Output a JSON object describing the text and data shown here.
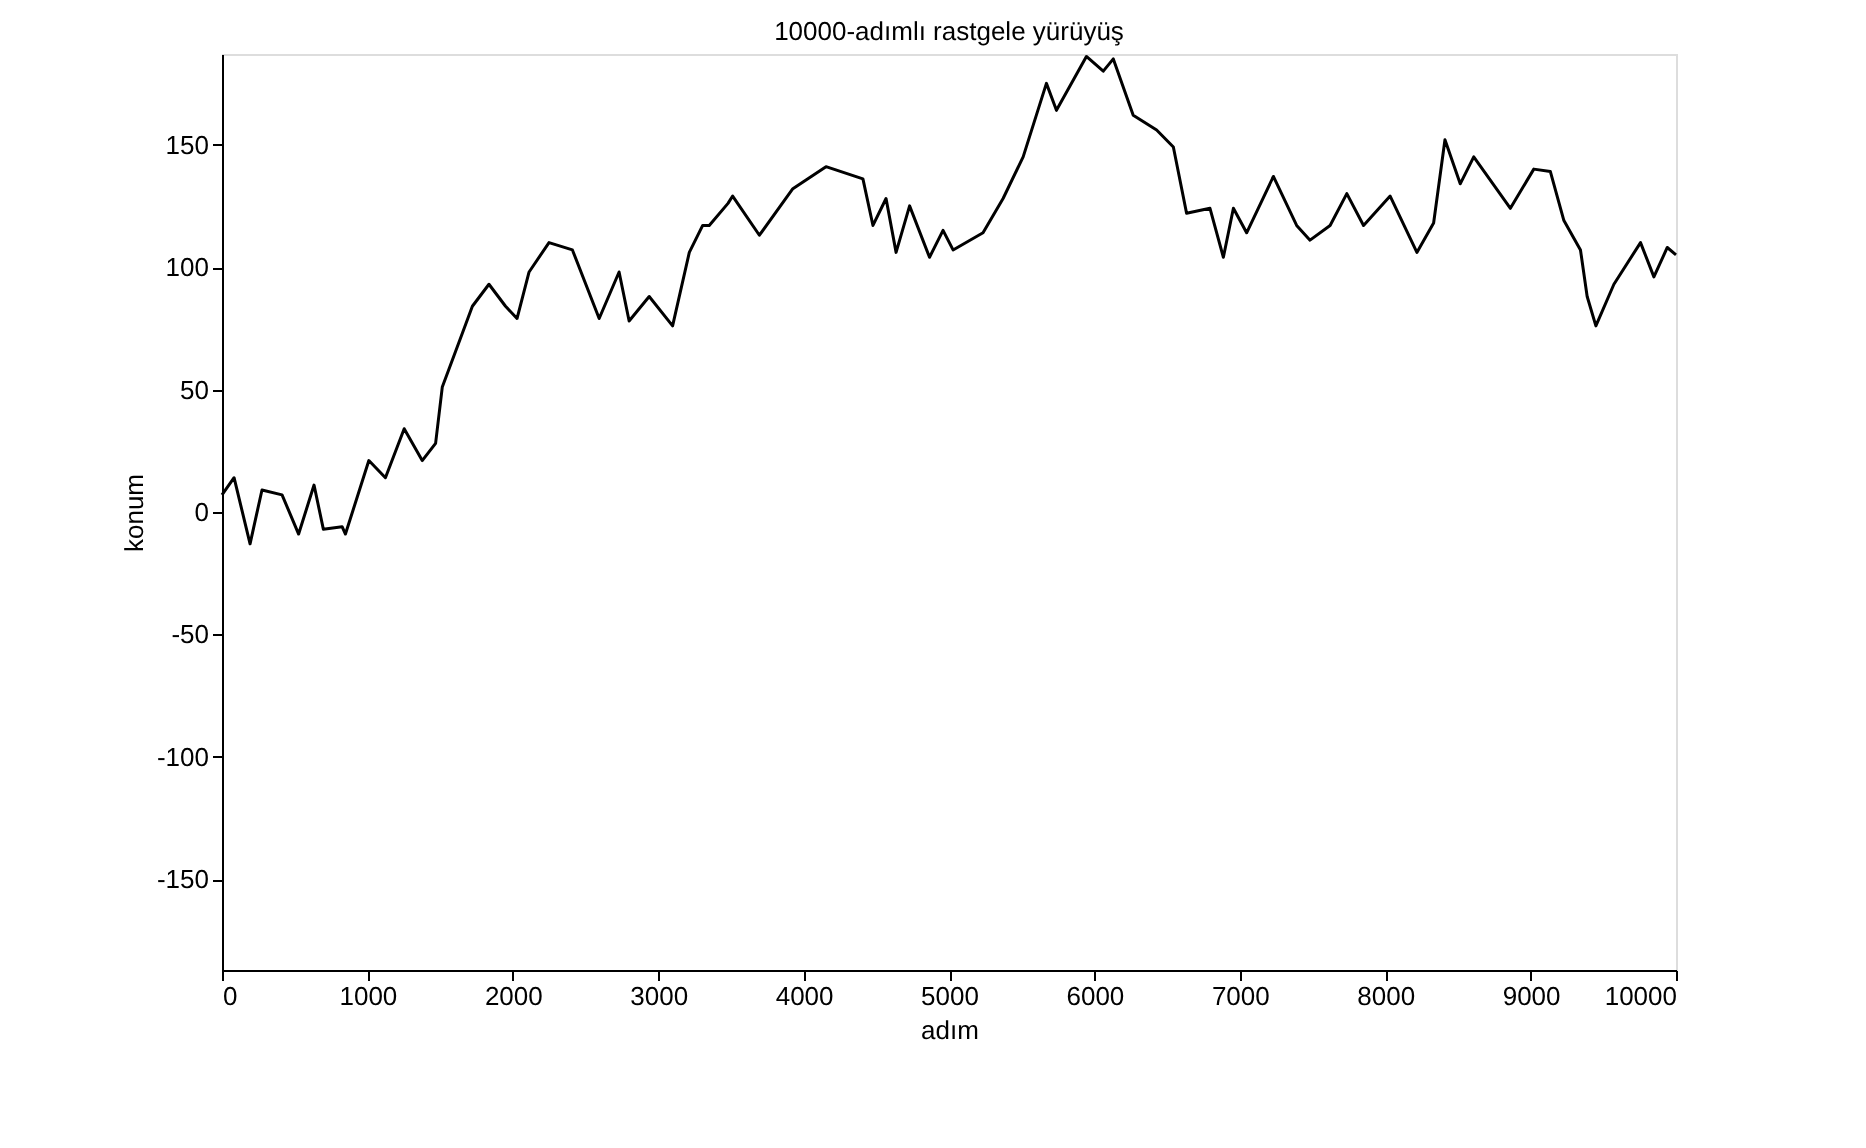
{
  "chart_data": {
    "type": "line",
    "title": "10000-adımlı rastgele yürüyüş",
    "xlabel": "adım",
    "ylabel": "konum",
    "x": [
      0,
      83,
      193,
      275,
      413,
      527,
      633,
      697,
      826,
      849,
      1010,
      1124,
      1253,
      1377,
      1469,
      1515,
      1653,
      1722,
      1836,
      1950,
      2029,
      2112,
      2249,
      2410,
      2594,
      2731,
      2800,
      2938,
      3099,
      3214,
      3306,
      3351,
      3480,
      3512,
      3696,
      3926,
      4154,
      4408,
      4477,
      4567,
      4636,
      4729,
      4866,
      4959,
      5028,
      5234,
      5372,
      5510,
      5670,
      5739,
      5945,
      6061,
      6130,
      6267,
      6428,
      6543,
      6634,
      6795,
      6887,
      6956,
      7047,
      7231,
      7391,
      7483,
      7621,
      7736,
      7851,
      8034,
      8218,
      8333,
      8411,
      8516,
      8609,
      8861,
      9022,
      9136,
      9229,
      9343,
      9389,
      9449,
      9573,
      9756,
      9848,
      9940,
      10000
    ],
    "series": [
      {
        "color": "#000000",
        "values": [
          7,
          14,
          -13,
          9,
          7,
          -9,
          11,
          -7,
          -6,
          -9,
          21,
          14,
          34,
          21,
          28,
          51,
          73,
          84,
          93,
          84,
          79,
          98,
          110,
          107,
          79,
          98,
          78,
          88,
          76,
          106,
          117,
          117,
          126,
          129,
          113,
          132,
          141,
          136,
          117,
          128,
          106,
          125,
          104,
          115,
          107,
          114,
          128,
          145,
          175,
          164,
          186,
          180,
          185,
          162,
          156,
          149,
          122,
          124,
          104,
          124,
          114,
          137,
          117,
          111,
          117,
          130,
          117,
          129,
          106,
          118,
          152,
          134,
          145,
          124,
          140,
          139,
          119,
          107,
          88,
          76,
          93,
          110,
          96,
          108,
          105
        ]
      }
    ],
    "xlim": [
      0,
      10000
    ],
    "xticks": [
      0,
      1000,
      2000,
      3000,
      4000,
      5000,
      6000,
      7000,
      8000,
      9000,
      10000
    ],
    "ylim": [
      -187,
      187
    ],
    "yticks": [
      -150,
      -100,
      -50,
      0,
      50,
      100,
      150
    ],
    "grid": false,
    "legend": false,
    "marker": "none",
    "line_style": "solid"
  }
}
